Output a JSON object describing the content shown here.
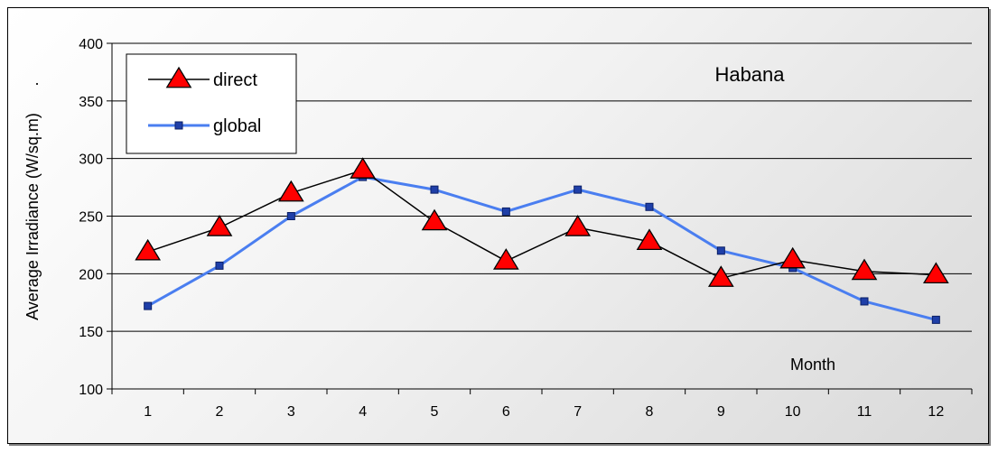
{
  "chart_data": {
    "type": "line",
    "title": "Habana",
    "xlabel": "Month",
    "ylabel": "Average Irradiance (W/sq.m)",
    "ylabel_suffix": ".",
    "x": [
      1,
      2,
      3,
      4,
      5,
      6,
      7,
      8,
      9,
      10,
      11,
      12
    ],
    "ylim": [
      100,
      400
    ],
    "yticks": [
      100,
      150,
      200,
      250,
      300,
      350,
      400
    ],
    "grid": "horizontal",
    "legend_position": "top-left",
    "series": [
      {
        "name": "direct",
        "color": "#000000",
        "marker": "triangle",
        "marker_color": "#ff0000",
        "values": [
          219,
          240,
          270,
          290,
          245,
          211,
          240,
          228,
          196,
          212,
          202,
          199
        ]
      },
      {
        "name": "global",
        "color": "#4a7ef0",
        "marker": "square",
        "marker_color": "#1f3fa8",
        "values": [
          172,
          207,
          250,
          284,
          273,
          254,
          273,
          258,
          220,
          205,
          176,
          160
        ]
      }
    ]
  }
}
